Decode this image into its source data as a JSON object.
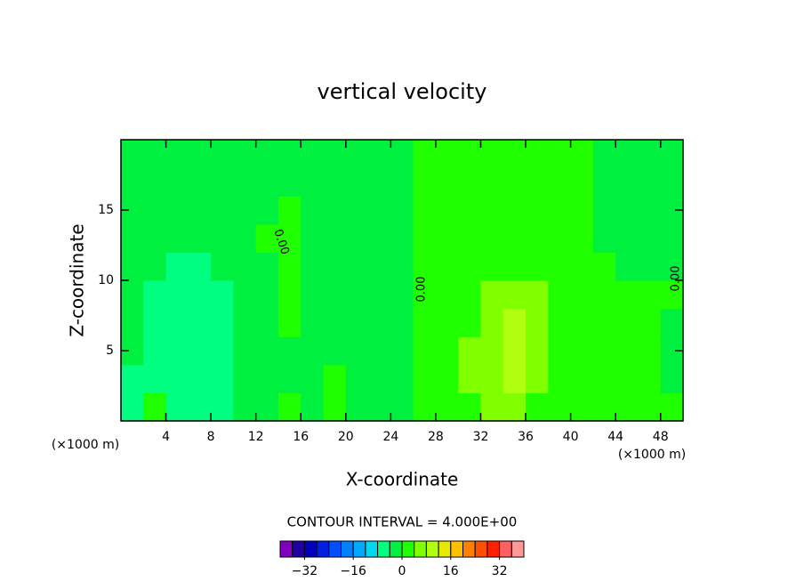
{
  "chart_data": {
    "type": "contour",
    "title": "vertical velocity",
    "x_label": "X-coordinate",
    "y_label": "Z-coordinate",
    "x_unit": "(×1000 m)",
    "y_unit": "(×1000 m)",
    "xlim": [
      0,
      50
    ],
    "ylim": [
      0,
      20
    ],
    "xticks": [
      4,
      8,
      12,
      16,
      20,
      24,
      28,
      32,
      36,
      40,
      44,
      48
    ],
    "yticks": [
      5,
      10,
      15
    ],
    "contour_labels": [
      "0.00",
      "0.00",
      "0.00"
    ],
    "z": [
      [
        -6,
        2,
        -6,
        -6,
        -6,
        -2,
        -2,
        2,
        -2,
        2,
        -2,
        -2,
        -2,
        2,
        2,
        2,
        6,
        6,
        2,
        2,
        2,
        2,
        2,
        2,
        2
      ],
      [
        -6,
        -6,
        -6,
        -6,
        -6,
        -2,
        -2,
        -2,
        -2,
        2,
        -2,
        -2,
        -2,
        2,
        2,
        6,
        6,
        10,
        6,
        2,
        2,
        2,
        2,
        2,
        -2
      ],
      [
        -2,
        -6,
        -6,
        -6,
        -6,
        -2,
        -2,
        -2,
        -2,
        -2,
        -2,
        -2,
        -2,
        2,
        2,
        6,
        6,
        10,
        6,
        2,
        2,
        2,
        2,
        2,
        -2
      ],
      [
        -2,
        -6,
        -6,
        -6,
        -6,
        -2,
        -2,
        2,
        -2,
        -2,
        -2,
        -2,
        -2,
        2,
        2,
        2,
        6,
        10,
        6,
        2,
        2,
        2,
        2,
        2,
        -2
      ],
      [
        -2,
        -6,
        -6,
        -6,
        -6,
        -2,
        -2,
        2,
        -2,
        -2,
        -2,
        -2,
        -2,
        2,
        2,
        2,
        6,
        6,
        6,
        2,
        2,
        2,
        2,
        2,
        2
      ],
      [
        -2,
        -2,
        -6,
        -6,
        -2,
        -2,
        -2,
        2,
        -2,
        -2,
        -2,
        -2,
        -2,
        2,
        2,
        2,
        2,
        2,
        2,
        2,
        2,
        2,
        -2,
        -2,
        -2
      ],
      [
        -2,
        -2,
        -2,
        -2,
        -2,
        -2,
        2,
        2,
        -2,
        -2,
        -2,
        -2,
        -2,
        2,
        2,
        2,
        2,
        2,
        2,
        2,
        2,
        -2,
        -2,
        -2,
        -2
      ],
      [
        -2,
        -2,
        -2,
        -2,
        -2,
        -2,
        -2,
        2,
        -2,
        -2,
        -2,
        -2,
        -2,
        2,
        2,
        2,
        2,
        2,
        2,
        2,
        2,
        -2,
        -2,
        -2,
        -2
      ],
      [
        -2,
        -2,
        -2,
        -2,
        -2,
        -2,
        -2,
        -2,
        -2,
        -2,
        -2,
        -2,
        -2,
        2,
        2,
        2,
        2,
        2,
        2,
        2,
        2,
        -2,
        -2,
        -2,
        -2
      ],
      [
        -2,
        -2,
        -2,
        -2,
        -2,
        -2,
        -2,
        -2,
        -2,
        -2,
        -2,
        -2,
        -2,
        2,
        2,
        2,
        2,
        2,
        2,
        2,
        2,
        -2,
        -2,
        -2,
        -2
      ]
    ],
    "colorbar": {
      "title": "CONTOUR INTERVAL = 4.000E+00",
      "lim": [
        -40,
        40
      ],
      "ticks": [
        {
          "value": -32,
          "label": "−32"
        },
        {
          "value": -16,
          "label": "−16"
        },
        0,
        16,
        32
      ],
      "colors": [
        "#8000c0",
        "#2000a0",
        "#0000c0",
        "#0020e0",
        "#0050ff",
        "#0080ff",
        "#00a8ff",
        "#00d8f0",
        "#00ff80",
        "#00f040",
        "#20ff00",
        "#80ff00",
        "#b0ff10",
        "#e8e800",
        "#ffc000",
        "#ff8000",
        "#ff5000",
        "#ff2000",
        "#ff6060",
        "#ff9898"
      ]
    }
  }
}
